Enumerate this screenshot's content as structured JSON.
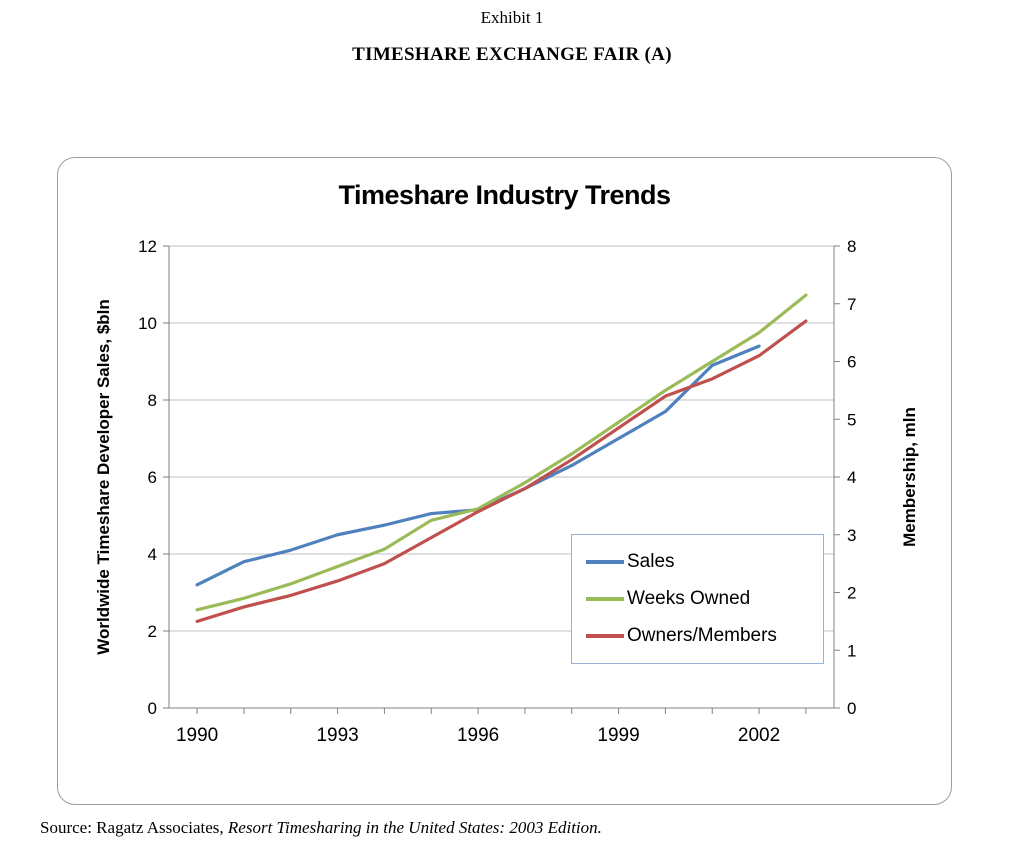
{
  "exhibit": {
    "label": "Exhibit 1",
    "title": "TIMESHARE EXCHANGE FAIR (A)"
  },
  "source": {
    "prefix": "Source: Ragatz Associates, ",
    "citation": "Resort Timesharing in the United States: 2003 Edition."
  },
  "chart_data": {
    "type": "line",
    "title": "Timeshare Industry Trends",
    "left_axis": {
      "label": "Worldwide Timeshare Developer Sales, $bln",
      "range": [
        0,
        12
      ],
      "ticks": [
        0,
        2,
        4,
        6,
        8,
        10,
        12
      ]
    },
    "right_axis": {
      "label": "Membership, mln",
      "range": [
        0,
        8
      ],
      "ticks": [
        0,
        1,
        2,
        3,
        4,
        5,
        6,
        7,
        8
      ]
    },
    "x_axis": {
      "range": [
        1989.4,
        2003.6
      ],
      "tick_years": [
        1990,
        1991,
        1992,
        1993,
        1994,
        1995,
        1996,
        1997,
        1998,
        1999,
        2000,
        2001,
        2002,
        2003
      ],
      "labeled_ticks": [
        1990,
        1993,
        1996,
        1999,
        2002
      ]
    },
    "series": [
      {
        "name": "Sales",
        "axis": "left",
        "color": "#4F81BD",
        "x": [
          1990,
          1991,
          1992,
          1993,
          1994,
          1995,
          1996,
          1997,
          1998,
          1999,
          2000,
          2001,
          2002
        ],
        "values": [
          3.2,
          3.8,
          4.1,
          4.5,
          4.75,
          5.05,
          5.15,
          5.7,
          6.3,
          7.0,
          7.7,
          8.9,
          9.4
        ]
      },
      {
        "name": "Weeks Owned",
        "axis": "right",
        "color": "#9BBB59",
        "x": [
          1990,
          1991,
          1992,
          1993,
          1994,
          1995,
          1996,
          1997,
          1998,
          1999,
          2000,
          2001,
          2002,
          2003
        ],
        "values": [
          1.7,
          1.9,
          2.15,
          2.45,
          2.75,
          3.25,
          3.45,
          3.9,
          4.4,
          4.95,
          5.5,
          6.0,
          6.5,
          7.15
        ]
      },
      {
        "name": "Owners/Members",
        "axis": "right",
        "color": "#C0504D",
        "x": [
          1990,
          1991,
          1992,
          1993,
          1994,
          1995,
          1996,
          1997,
          1998,
          1999,
          2000,
          2001,
          2002,
          2003
        ],
        "values": [
          1.5,
          1.75,
          1.95,
          2.2,
          2.5,
          2.95,
          3.4,
          3.8,
          4.3,
          4.85,
          5.4,
          5.7,
          6.1,
          6.7
        ]
      }
    ],
    "legend": {
      "position": "inside lower right",
      "entries": [
        "Sales",
        "Weeks Owned",
        "Owners/Members"
      ]
    },
    "colors": {
      "grid": "#C0C0C0",
      "axis": "#808080",
      "legend_border": "#95B3D7"
    },
    "grid": "horizontal only"
  }
}
